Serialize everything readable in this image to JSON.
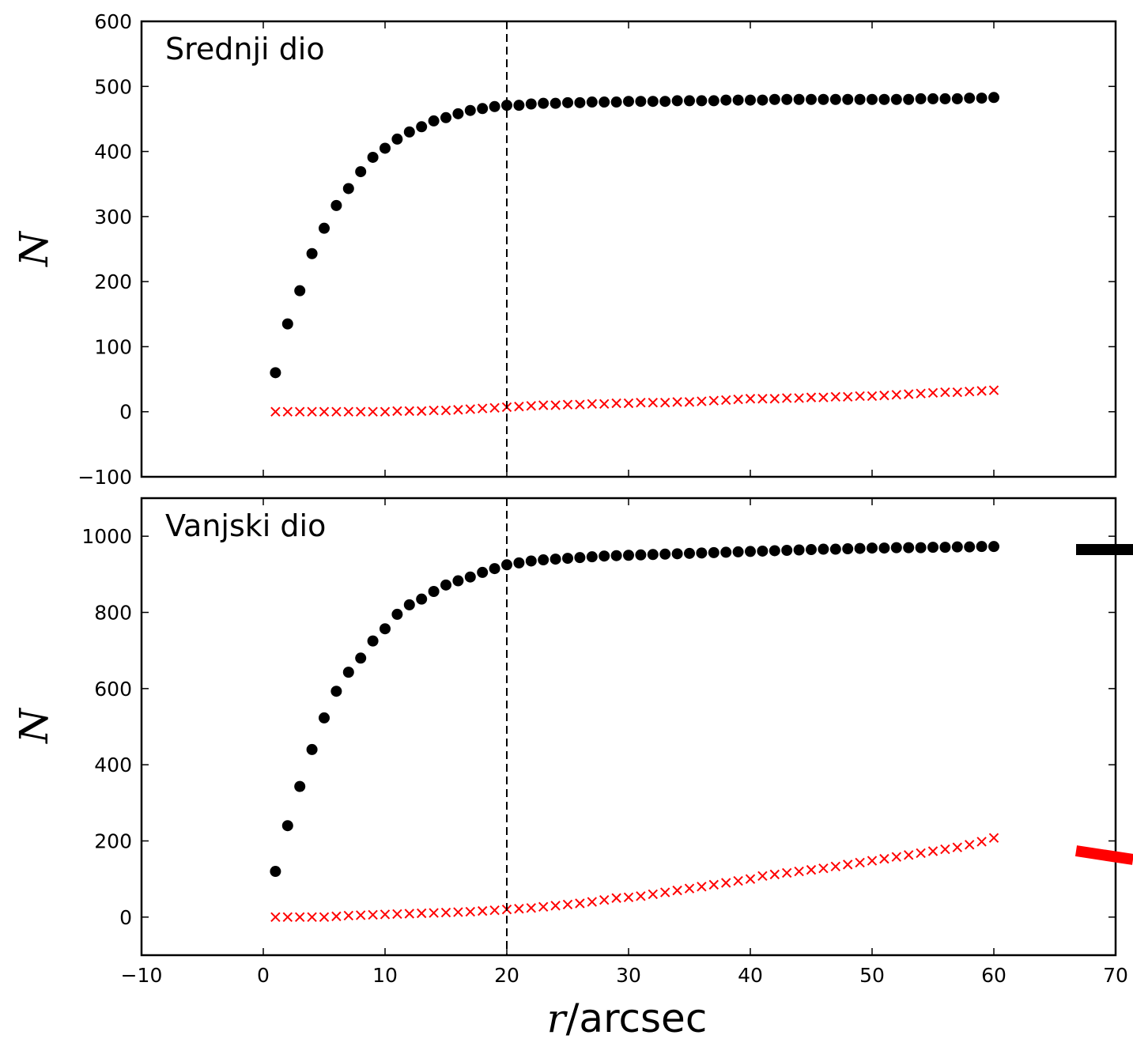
{
  "chart_data": {
    "type": "scatter",
    "xlabel_var": "r",
    "xlabel_unit": "/arcsec",
    "xlim": [
      -10,
      70
    ],
    "xticks": [
      -10,
      0,
      10,
      20,
      30,
      40,
      50,
      60,
      70
    ],
    "vline_x": 20,
    "colors": {
      "dots": "#000000",
      "crosses": "#ff0000",
      "legend_black": "#000000",
      "legend_red": "#ff0000"
    },
    "x": [
      1,
      2,
      3,
      4,
      5,
      6,
      7,
      8,
      9,
      10,
      11,
      12,
      13,
      14,
      15,
      16,
      17,
      18,
      19,
      20,
      21,
      22,
      23,
      24,
      25,
      26,
      27,
      28,
      29,
      30,
      31,
      32,
      33,
      34,
      35,
      36,
      37,
      38,
      39,
      40,
      41,
      42,
      43,
      44,
      45,
      46,
      47,
      48,
      49,
      50,
      51,
      52,
      53,
      54,
      55,
      56,
      57,
      58,
      59,
      60
    ],
    "panels": [
      {
        "title": "Srednji dio",
        "ylabel": "N",
        "ylim": [
          -100,
          600
        ],
        "yticks": [
          -100,
          0,
          100,
          200,
          300,
          400,
          500,
          600
        ],
        "series": [
          {
            "marker": "circle",
            "values": [
              60,
              135,
              186,
              243,
              282,
              317,
              343,
              369,
              391,
              405,
              419,
              430,
              438,
              447,
              452,
              458,
              463,
              466,
              469,
              471,
              471,
              473,
              474,
              474,
              475,
              475,
              476,
              476,
              476,
              477,
              477,
              477,
              477,
              478,
              478,
              478,
              478,
              479,
              479,
              479,
              479,
              480,
              480,
              480,
              480,
              480,
              480,
              480,
              480,
              480,
              480,
              480,
              480,
              481,
              481,
              481,
              481,
              482,
              482,
              483
            ]
          },
          {
            "marker": "x",
            "values": [
              0,
              0,
              0,
              0,
              0,
              0,
              0,
              0,
              0,
              0,
              1,
              1,
              1,
              2,
              2,
              3,
              4,
              5,
              6,
              7,
              8,
              9,
              10,
              10,
              11,
              11,
              12,
              12,
              13,
              13,
              14,
              14,
              14,
              15,
              15,
              16,
              17,
              18,
              19,
              20,
              20,
              20,
              21,
              21,
              22,
              22,
              23,
              23,
              24,
              24,
              25,
              26,
              27,
              28,
              29,
              30,
              30,
              31,
              32,
              33
            ]
          }
        ]
      },
      {
        "title": "Vanjski dio",
        "ylabel": "N",
        "ylim": [
          -100,
          1100
        ],
        "yticks": [
          0,
          200,
          400,
          600,
          800,
          1000
        ],
        "series": [
          {
            "marker": "circle",
            "values": [
              120,
              240,
              343,
              440,
              523,
              593,
              643,
              680,
              725,
              757,
              795,
              820,
              835,
              855,
              872,
              883,
              893,
              905,
              915,
              925,
              930,
              935,
              938,
              940,
              942,
              944,
              946,
              948,
              949,
              950,
              951,
              952,
              953,
              954,
              955,
              956,
              957,
              958,
              959,
              960,
              961,
              962,
              963,
              964,
              965,
              966,
              966,
              967,
              968,
              969,
              969,
              970,
              970,
              970,
              971,
              971,
              972,
              972,
              973,
              973
            ]
          },
          {
            "marker": "x",
            "values": [
              0,
              0,
              0,
              0,
              0,
              2,
              4,
              5,
              6,
              7,
              8,
              9,
              10,
              11,
              12,
              13,
              14,
              16,
              18,
              20,
              22,
              24,
              27,
              30,
              33,
              36,
              40,
              45,
              50,
              52,
              55,
              60,
              65,
              70,
              75,
              80,
              85,
              90,
              95,
              100,
              108,
              112,
              116,
              120,
              124,
              128,
              133,
              138,
              143,
              148,
              153,
              158,
              163,
              168,
              173,
              178,
              183,
              190,
              198,
              208
            ]
          }
        ]
      }
    ]
  }
}
